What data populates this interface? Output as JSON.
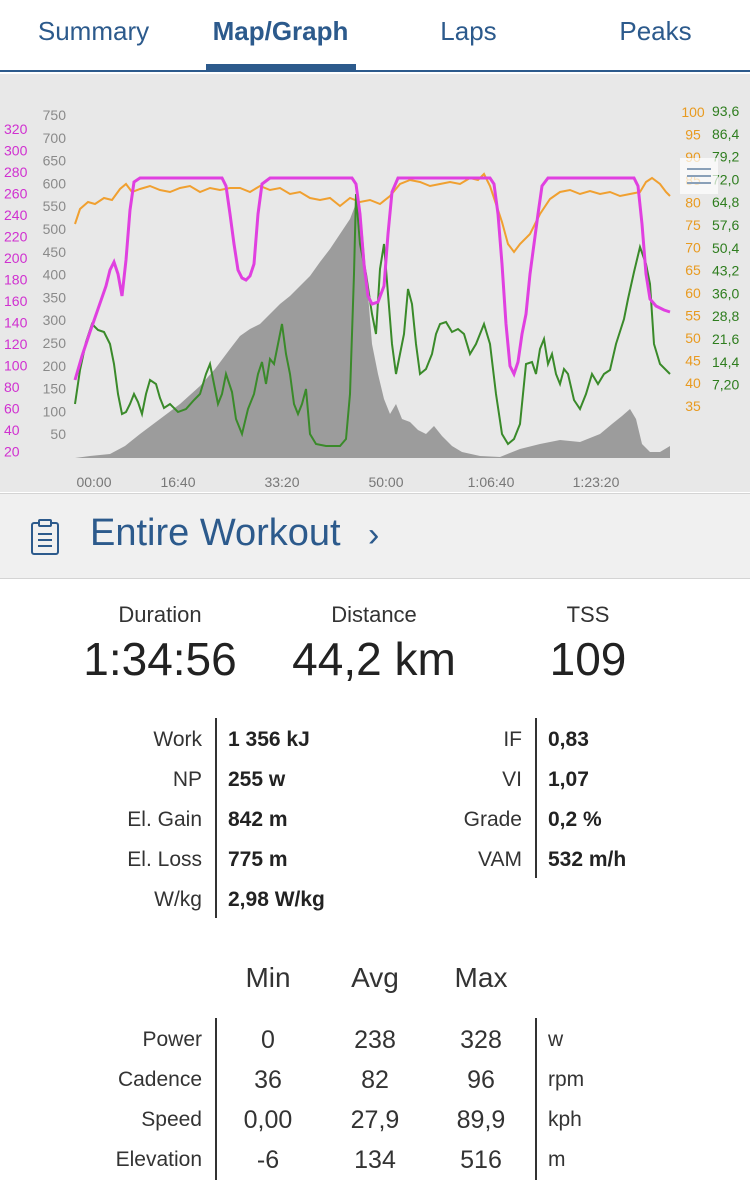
{
  "tabs": [
    {
      "label": "Summary",
      "active": false
    },
    {
      "label": "Map/Graph",
      "active": true
    },
    {
      "label": "Laps",
      "active": false
    },
    {
      "label": "Peaks",
      "active": false
    }
  ],
  "chart": {
    "x_ticks": [
      "00:00",
      "16:40",
      "33:20",
      "50:00",
      "1:06:40",
      "1:23:20"
    ],
    "power_axis": [
      "320",
      "300",
      "280",
      "260",
      "240",
      "220",
      "200",
      "180",
      "160",
      "140",
      "120",
      "100",
      "80",
      "60",
      "40",
      "20"
    ],
    "elevation_axis": [
      "750",
      "700",
      "650",
      "600",
      "550",
      "500",
      "450",
      "400",
      "350",
      "300",
      "250",
      "200",
      "150",
      "100",
      "50"
    ],
    "cadence_axis": [
      "100",
      "95",
      "90",
      "85",
      "80",
      "75",
      "70",
      "65",
      "60",
      "55",
      "50",
      "45",
      "40",
      "35"
    ],
    "speed_axis": [
      "93,6",
      "86,4",
      "79,2",
      "72,0",
      "64,8",
      "57,6",
      "50,4",
      "43,2",
      "36,0",
      "28,8",
      "21,6",
      "14,4",
      "7,20"
    ],
    "colors": {
      "power": "#e040e0",
      "cadence": "#f0a030",
      "speed": "#3a8a2a",
      "elevation": "#888888",
      "speed_label": "#2e7d1e",
      "power_label": "#d030d0",
      "cadence_label": "#e89a20"
    }
  },
  "workout": {
    "title": "Entire Workout",
    "chevron": "›",
    "icon": "clipboard-icon"
  },
  "headline": [
    {
      "label": "Duration",
      "value": "1:34:56"
    },
    {
      "label": "Distance",
      "value": "44,2 km"
    },
    {
      "label": "TSS",
      "value": "109"
    }
  ],
  "details_left": [
    {
      "label": "Work",
      "value": "1 356 kJ"
    },
    {
      "label": "NP",
      "value": "255 w"
    },
    {
      "label": "El. Gain",
      "value": "842 m"
    },
    {
      "label": "El. Loss",
      "value": "775 m"
    },
    {
      "label": "W/kg",
      "value": "2,98 W/kg"
    }
  ],
  "details_right": [
    {
      "label": "IF",
      "value": "0,83"
    },
    {
      "label": "VI",
      "value": "1,07"
    },
    {
      "label": "Grade",
      "value": "0,2 %"
    },
    {
      "label": "VAM",
      "value": "532 m/h"
    }
  ],
  "table": {
    "headers": [
      "Min",
      "Avg",
      "Max"
    ],
    "rows": [
      {
        "label": "Power",
        "min": "0",
        "avg": "238",
        "max": "328",
        "unit": "w"
      },
      {
        "label": "Cadence",
        "min": "36",
        "avg": "82",
        "max": "96",
        "unit": "rpm"
      },
      {
        "label": "Speed",
        "min": "0,00",
        "avg": "27,9",
        "max": "89,9",
        "unit": "kph"
      },
      {
        "label": "Elevation",
        "min": "-6",
        "avg": "134",
        "max": "516",
        "unit": "m"
      }
    ]
  }
}
